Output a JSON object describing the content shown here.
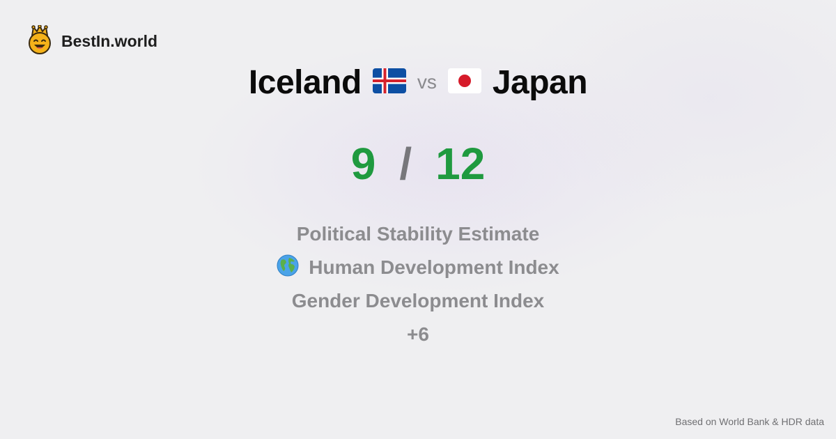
{
  "brand": {
    "name": "BestIn.world",
    "logo_icon": "crowned-smiley-icon"
  },
  "comparison": {
    "left_country": "Iceland",
    "left_flag": "iceland-flag-icon",
    "vs_label": "vs",
    "right_country": "Japan",
    "right_flag": "japan-flag-icon"
  },
  "score": {
    "left": "9",
    "separator": "/",
    "right": "12"
  },
  "metrics": [
    {
      "label": "Political Stability Estimate"
    },
    {
      "label": "Human Development Index",
      "icon": "globe-icon"
    },
    {
      "label": "Gender Development Index"
    },
    {
      "label": "+6"
    }
  ],
  "footer": {
    "source": "Based on World Bank & HDR data"
  },
  "colors": {
    "score_green": "#1f9a3f",
    "metric_gray": "#8c8c8f",
    "background": "#efeff1"
  }
}
